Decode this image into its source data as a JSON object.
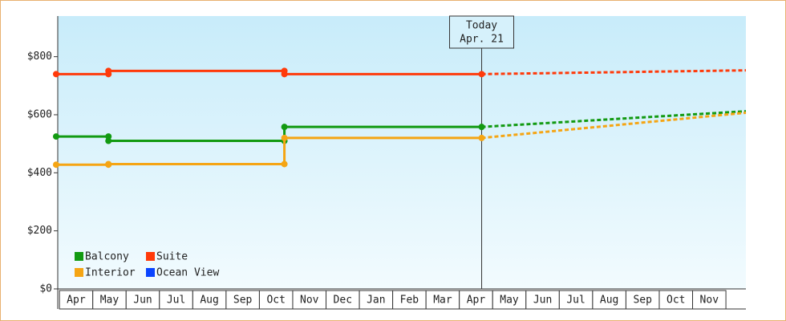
{
  "chart_data": {
    "type": "line",
    "ylim": [
      0,
      940
    ],
    "yticks": [
      {
        "value": 0,
        "label": "$0"
      },
      {
        "value": 200,
        "label": "$200"
      },
      {
        "value": 400,
        "label": "$400"
      },
      {
        "value": 600,
        "label": "$600"
      },
      {
        "value": 800,
        "label": "$800"
      }
    ],
    "xlim": [
      -0.1,
      20.6
    ],
    "xticks": [
      {
        "value": 0.5,
        "label": "Apr"
      },
      {
        "value": 1.5,
        "label": "May"
      },
      {
        "value": 2.5,
        "label": "Jun"
      },
      {
        "value": 3.5,
        "label": "Jul"
      },
      {
        "value": 4.5,
        "label": "Aug"
      },
      {
        "value": 5.5,
        "label": "Sep"
      },
      {
        "value": 6.5,
        "label": "Oct"
      },
      {
        "value": 7.5,
        "label": "Nov"
      },
      {
        "value": 8.5,
        "label": "Dec"
      },
      {
        "value": 9.5,
        "label": "Jan"
      },
      {
        "value": 10.5,
        "label": "Feb"
      },
      {
        "value": 11.5,
        "label": "Mar"
      },
      {
        "value": 12.5,
        "label": "Apr"
      },
      {
        "value": 13.5,
        "label": "May"
      },
      {
        "value": 14.5,
        "label": "Jun"
      },
      {
        "value": 15.5,
        "label": "Jul"
      },
      {
        "value": 16.5,
        "label": "Aug"
      },
      {
        "value": 17.5,
        "label": "Sep"
      },
      {
        "value": 18.5,
        "label": "Oct"
      },
      {
        "value": 19.5,
        "label": "Nov"
      }
    ],
    "today_x": 12.67,
    "today_label": [
      "Today",
      "Apr. 21"
    ],
    "series": [
      {
        "name": "Balcony",
        "color": "#129a12",
        "x": [
          -0.1,
          1.47,
          1.47,
          6.75,
          6.75,
          12.67
        ],
        "values": [
          525,
          525,
          510,
          510,
          558,
          558
        ],
        "forecast_x": [
          12.67,
          20.6
        ],
        "forecast_values": [
          558,
          612
        ]
      },
      {
        "name": "Suite",
        "color": "#ff3a0a",
        "x": [
          -0.1,
          1.47,
          1.47,
          6.75,
          6.75,
          12.67
        ],
        "values": [
          740,
          740,
          751,
          751,
          740,
          740
        ],
        "forecast_x": [
          12.67,
          20.6
        ],
        "forecast_values": [
          740,
          753
        ]
      },
      {
        "name": "Interior",
        "color": "#f5a514",
        "x": [
          -0.1,
          1.47,
          1.47,
          6.75,
          6.75,
          12.67
        ],
        "values": [
          428,
          428,
          430,
          430,
          520,
          520
        ],
        "forecast_x": [
          12.67,
          20.6
        ],
        "forecast_values": [
          520,
          607
        ]
      },
      {
        "name": "Ocean View",
        "color": "#0a44ff"
      }
    ]
  }
}
